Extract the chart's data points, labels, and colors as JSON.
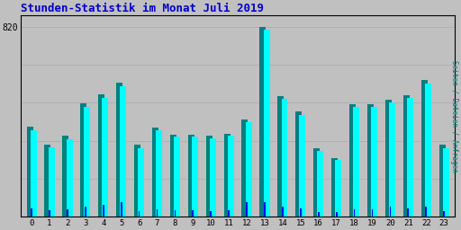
{
  "title": "Stunden-Statistik im Monat Juli 2019",
  "title_color": "#0000cc",
  "title_fontsize": 9,
  "background_color": "#c0c0c0",
  "plot_bg_color": "#c0c0c0",
  "ylabel_right": "Seiten / Dateien / Anfragen",
  "ylabel_right_color": "#008080",
  "hours": [
    0,
    1,
    2,
    3,
    4,
    5,
    6,
    7,
    8,
    9,
    10,
    11,
    12,
    13,
    14,
    15,
    16,
    17,
    18,
    19,
    20,
    21,
    22,
    23
  ],
  "series_seiten": [
    390,
    310,
    350,
    490,
    530,
    580,
    310,
    385,
    355,
    355,
    350,
    360,
    420,
    820,
    520,
    455,
    295,
    255,
    485,
    485,
    505,
    525,
    590,
    310
  ],
  "series_dateien": [
    375,
    300,
    335,
    475,
    515,
    565,
    298,
    375,
    345,
    345,
    340,
    350,
    408,
    808,
    508,
    440,
    285,
    245,
    475,
    475,
    495,
    515,
    575,
    298
  ],
  "series_anfragen": [
    38,
    28,
    33,
    43,
    52,
    62,
    26,
    33,
    28,
    28,
    26,
    28,
    62,
    62,
    43,
    36,
    23,
    20,
    33,
    33,
    43,
    38,
    43,
    26
  ],
  "color_seiten": "#008080",
  "color_dateien": "#00ffff",
  "color_anfragen": "#0000ff",
  "ylim_max": 870,
  "ytick_val": 820,
  "ytick_label": "820",
  "grid_color": "#aaaaaa",
  "grid_linewidth": 0.5,
  "bar_width": 0.35,
  "figsize": [
    5.12,
    2.56
  ],
  "dpi": 100,
  "border_color": "#000000"
}
